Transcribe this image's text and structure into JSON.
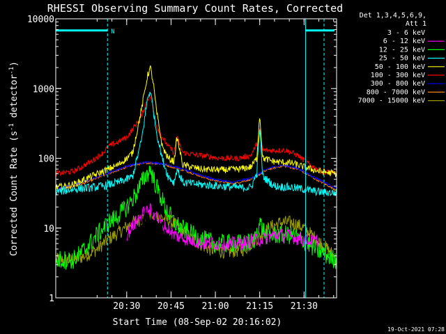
{
  "chart_data": {
    "type": "line",
    "title": "RHESSI Observing Summary Count Rates, Corrected",
    "xlabel": "Start Time (08-Sep-02 20:16:02)",
    "ylabel": "Corrected Count Rate (s",
    "ylabel_sup1": "-1",
    "ylabel_mid": " detector",
    "ylabel_sup2": "-1",
    "ylabel_end": ")",
    "y_scale": "log",
    "ylim": [
      1,
      10000
    ],
    "xlim_minutes": [
      6,
      101
    ],
    "x_ticks": [
      {
        "label": "20:30",
        "min": 30
      },
      {
        "label": "20:45",
        "min": 45
      },
      {
        "label": "21:00",
        "min": 60
      },
      {
        "label": "21:15",
        "min": 75
      },
      {
        "label": "21:30",
        "min": 90
      },
      {
        "label": "21:45",
        "min": 105
      }
    ],
    "y_ticks": [
      {
        "label": "1",
        "value": 1
      },
      {
        "label": "10",
        "value": 10
      },
      {
        "label": "100",
        "value": 100
      },
      {
        "label": "1000",
        "value": 1000
      },
      {
        "label": "10000",
        "value": 10000
      }
    ],
    "legend_header": [
      "Det 1,3,4,5,6,9,",
      "Att 1"
    ],
    "legend_placement": "right",
    "annotation_N": "N",
    "footer_date": "19-Oct-2021 07:28",
    "night_bars": [
      {
        "start": 6,
        "end": 23.5,
        "value": 6800
      },
      {
        "start": 90.5,
        "end": 106,
        "value": 6800
      }
    ],
    "saa_lines": [
      {
        "at": 6,
        "style": "solid"
      },
      {
        "at": 23.5,
        "style": "dashed"
      },
      {
        "at": 90.5,
        "style": "solid"
      },
      {
        "at": 106,
        "style": "dashed"
      }
    ],
    "series": [
      {
        "name": "3 - 6 keV",
        "color": "#000000",
        "points": [
          [
            18,
            1
          ],
          [
            22,
            1.5
          ],
          [
            28,
            2.5
          ],
          [
            32,
            5
          ],
          [
            36,
            12
          ],
          [
            39,
            14
          ],
          [
            42,
            8
          ],
          [
            46,
            4
          ],
          [
            50,
            2
          ],
          [
            55,
            1.5
          ],
          [
            60,
            1
          ],
          [
            66,
            1
          ],
          [
            72,
            1
          ],
          [
            75,
            3
          ],
          [
            78,
            3.5
          ],
          [
            82,
            3
          ],
          [
            86,
            3.5
          ],
          [
            90,
            3
          ],
          [
            91,
            1
          ]
        ]
      },
      {
        "name": "6 - 12 keV",
        "color": "#ff00ff",
        "points": [
          [
            30,
            8
          ],
          [
            33,
            12
          ],
          [
            36,
            17
          ],
          [
            38,
            18
          ],
          [
            40,
            15
          ],
          [
            43,
            10
          ],
          [
            46,
            8
          ],
          [
            50,
            7
          ],
          [
            56,
            6
          ],
          [
            62,
            6
          ],
          [
            68,
            6
          ],
          [
            72,
            6.5
          ],
          [
            76,
            7
          ],
          [
            80,
            8
          ],
          [
            84,
            8
          ],
          [
            88,
            7
          ],
          [
            92,
            6.5
          ],
          [
            95,
            6.5
          ]
        ]
      },
      {
        "name": "12 - 25 keV",
        "color": "#00ff00",
        "points": [
          [
            6,
            3.5
          ],
          [
            12,
            3.5
          ],
          [
            16,
            5
          ],
          [
            20,
            8
          ],
          [
            24,
            12
          ],
          [
            27,
            15
          ],
          [
            30,
            20
          ],
          [
            33,
            30
          ],
          [
            35,
            45
          ],
          [
            37,
            60
          ],
          [
            38,
            70
          ],
          [
            40,
            40
          ],
          [
            43,
            20
          ],
          [
            46,
            12
          ],
          [
            50,
            9
          ],
          [
            55,
            7
          ],
          [
            60,
            6
          ],
          [
            65,
            6
          ],
          [
            70,
            6
          ],
          [
            73,
            6.5
          ],
          [
            75,
            12
          ],
          [
            77,
            8
          ],
          [
            82,
            8
          ],
          [
            86,
            8
          ],
          [
            90,
            6.5
          ],
          [
            94,
            5
          ],
          [
            98,
            4
          ],
          [
            101,
            3.5
          ]
        ]
      },
      {
        "name": "25 - 50 keV",
        "color": "#00ffff",
        "points": [
          [
            6,
            33
          ],
          [
            12,
            36
          ],
          [
            18,
            38
          ],
          [
            22,
            40
          ],
          [
            27,
            45
          ],
          [
            30,
            50
          ],
          [
            32,
            55
          ],
          [
            35,
            180
          ],
          [
            37,
            700
          ],
          [
            38,
            950
          ],
          [
            39,
            500
          ],
          [
            40,
            250
          ],
          [
            42,
            100
          ],
          [
            44,
            55
          ],
          [
            46,
            45
          ],
          [
            47,
            70
          ],
          [
            49,
            45
          ],
          [
            55,
            42
          ],
          [
            62,
            40
          ],
          [
            68,
            38
          ],
          [
            72,
            38
          ],
          [
            74,
            60
          ],
          [
            75,
            280
          ],
          [
            76,
            55
          ],
          [
            80,
            40
          ],
          [
            86,
            38
          ],
          [
            90,
            36
          ],
          [
            95,
            33
          ],
          [
            101,
            32
          ]
        ]
      },
      {
        "name": "50 - 100 keV",
        "color": "#ffff00",
        "points": [
          [
            6,
            38
          ],
          [
            12,
            42
          ],
          [
            18,
            55
          ],
          [
            22,
            65
          ],
          [
            27,
            80
          ],
          [
            30,
            100
          ],
          [
            32,
            120
          ],
          [
            35,
            500
          ],
          [
            37,
            1500
          ],
          [
            38,
            2000
          ],
          [
            39,
            1200
          ],
          [
            40,
            500
          ],
          [
            42,
            150
          ],
          [
            44,
            100
          ],
          [
            46,
            90
          ],
          [
            47,
            200
          ],
          [
            49,
            80
          ],
          [
            55,
            70
          ],
          [
            62,
            68
          ],
          [
            68,
            70
          ],
          [
            72,
            75
          ],
          [
            74,
            100
          ],
          [
            75,
            430
          ],
          [
            76,
            100
          ],
          [
            80,
            90
          ],
          [
            86,
            85
          ],
          [
            90,
            75
          ],
          [
            95,
            65
          ],
          [
            101,
            60
          ]
        ]
      },
      {
        "name": "100 - 300 keV",
        "color": "#ff0000",
        "points": [
          [
            6,
            60
          ],
          [
            12,
            65
          ],
          [
            18,
            90
          ],
          [
            22,
            120
          ],
          [
            24,
            150
          ],
          [
            27,
            170
          ],
          [
            30,
            200
          ],
          [
            33,
            300
          ],
          [
            35,
            400
          ],
          [
            37,
            700
          ],
          [
            38,
            800
          ],
          [
            39,
            500
          ],
          [
            40,
            300
          ],
          [
            42,
            200
          ],
          [
            44,
            150
          ],
          [
            46,
            120
          ],
          [
            47,
            200
          ],
          [
            49,
            120
          ],
          [
            55,
            110
          ],
          [
            62,
            100
          ],
          [
            68,
            100
          ],
          [
            72,
            110
          ],
          [
            74,
            160
          ],
          [
            75,
            250
          ],
          [
            76,
            130
          ],
          [
            80,
            130
          ],
          [
            84,
            130
          ],
          [
            88,
            110
          ],
          [
            92,
            80
          ],
          [
            96,
            65
          ],
          [
            101,
            60
          ]
        ]
      },
      {
        "name": "300 - 800 keV",
        "color": "#0000ff",
        "points": [
          [
            6,
            36
          ],
          [
            15,
            45
          ],
          [
            25,
            65
          ],
          [
            32,
            82
          ],
          [
            37,
            88
          ],
          [
            42,
            85
          ],
          [
            50,
            68
          ],
          [
            58,
            52
          ],
          [
            66,
            45
          ],
          [
            72,
            52
          ],
          [
            78,
            72
          ],
          [
            83,
            80
          ],
          [
            88,
            72
          ],
          [
            94,
            52
          ],
          [
            101,
            37
          ]
        ]
      },
      {
        "name": "800 - 7000 keV",
        "color": "#ff8000",
        "points": [
          [
            6,
            35
          ],
          [
            15,
            43
          ],
          [
            25,
            63
          ],
          [
            32,
            80
          ],
          [
            37,
            86
          ],
          [
            42,
            83
          ],
          [
            50,
            66
          ],
          [
            58,
            50
          ],
          [
            66,
            43
          ],
          [
            72,
            50
          ],
          [
            78,
            70
          ],
          [
            83,
            78
          ],
          [
            88,
            70
          ],
          [
            94,
            50
          ],
          [
            101,
            35
          ]
        ]
      },
      {
        "name": "7000 - 15000 keV",
        "color": "#999900",
        "points": [
          [
            6,
            3.5
          ],
          [
            12,
            3.5
          ],
          [
            16,
            4
          ],
          [
            20,
            5
          ],
          [
            24,
            7
          ],
          [
            28,
            9
          ],
          [
            32,
            12
          ],
          [
            36,
            14
          ],
          [
            40,
            15
          ],
          [
            44,
            13
          ],
          [
            48,
            10
          ],
          [
            52,
            7
          ],
          [
            58,
            5
          ],
          [
            64,
            4.5
          ],
          [
            70,
            5
          ],
          [
            74,
            7
          ],
          [
            78,
            10
          ],
          [
            82,
            12
          ],
          [
            86,
            12
          ],
          [
            90,
            10
          ],
          [
            94,
            7
          ],
          [
            98,
            5
          ],
          [
            101,
            3.5
          ]
        ]
      }
    ]
  }
}
